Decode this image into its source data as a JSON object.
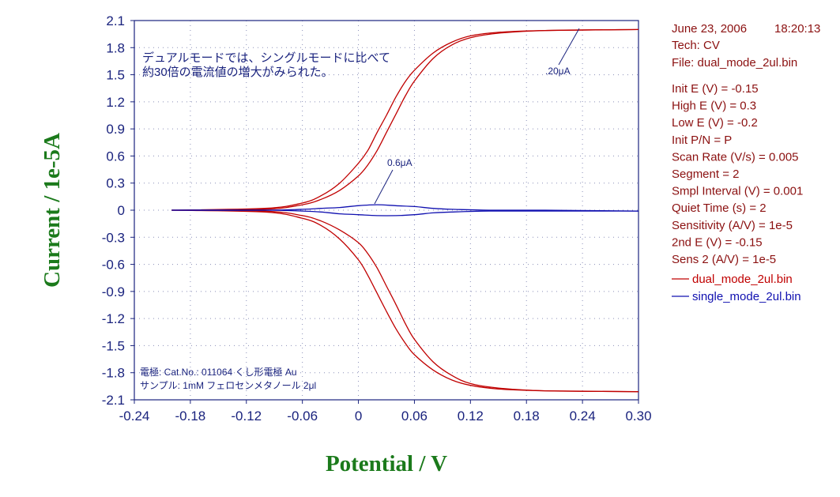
{
  "chart_data": {
    "type": "line",
    "xlabel": "Potential / V",
    "ylabel": "Current / 1e-5A",
    "xlim": [
      -0.24,
      0.3
    ],
    "ylim": [
      -2.1,
      2.1
    ],
    "grid": true,
    "x_ticks": [
      "-0.24",
      "-0.18",
      "-0.12",
      "-0.06",
      "0",
      "0.06",
      "0.12",
      "0.18",
      "0.24",
      "0.30"
    ],
    "y_ticks": [
      "2.1",
      "1.8",
      "1.5",
      "1.2",
      "0.9",
      "0.6",
      "0.3",
      "0",
      "-0.3",
      "-0.6",
      "-0.9",
      "-1.2",
      "-1.5",
      "-1.8",
      "-2.1"
    ],
    "series": [
      {
        "name": "dual_mode_2ul.bin",
        "color": "#c00000",
        "forward": [
          [
            -0.2,
            0.0
          ],
          [
            -0.1,
            0.01
          ],
          [
            -0.06,
            0.06
          ],
          [
            -0.04,
            0.12
          ],
          [
            -0.02,
            0.22
          ],
          [
            0.0,
            0.38
          ],
          [
            0.01,
            0.5
          ],
          [
            0.02,
            0.66
          ],
          [
            0.03,
            0.86
          ],
          [
            0.04,
            1.06
          ],
          [
            0.05,
            1.26
          ],
          [
            0.06,
            1.43
          ],
          [
            0.08,
            1.68
          ],
          [
            0.1,
            1.83
          ],
          [
            0.12,
            1.91
          ],
          [
            0.15,
            1.96
          ],
          [
            0.2,
            1.99
          ],
          [
            0.3,
            2.0
          ]
        ],
        "reverse": [
          [
            0.3,
            2.0
          ],
          [
            0.2,
            1.99
          ],
          [
            0.15,
            1.97
          ],
          [
            0.12,
            1.93
          ],
          [
            0.1,
            1.86
          ],
          [
            0.08,
            1.74
          ],
          [
            0.06,
            1.55
          ],
          [
            0.05,
            1.42
          ],
          [
            0.04,
            1.25
          ],
          [
            0.03,
            1.05
          ],
          [
            0.02,
            0.86
          ],
          [
            0.01,
            0.66
          ],
          [
            0.0,
            0.52
          ],
          [
            -0.02,
            0.3
          ],
          [
            -0.04,
            0.16
          ],
          [
            -0.06,
            0.08
          ],
          [
            -0.1,
            0.02
          ],
          [
            -0.2,
            0.0
          ]
        ],
        "collector_forward": [
          [
            -0.2,
            0.0
          ],
          [
            -0.1,
            -0.01
          ],
          [
            -0.06,
            -0.06
          ],
          [
            -0.04,
            -0.12
          ],
          [
            -0.02,
            -0.22
          ],
          [
            0.0,
            -0.36
          ],
          [
            0.01,
            -0.48
          ],
          [
            0.02,
            -0.64
          ],
          [
            0.03,
            -0.84
          ],
          [
            0.04,
            -1.04
          ],
          [
            0.05,
            -1.25
          ],
          [
            0.06,
            -1.43
          ],
          [
            0.08,
            -1.68
          ],
          [
            0.1,
            -1.83
          ],
          [
            0.12,
            -1.92
          ],
          [
            0.15,
            -1.97
          ],
          [
            0.2,
            -2.0
          ],
          [
            0.3,
            -2.01
          ]
        ],
        "collector_reverse": [
          [
            0.3,
            -2.01
          ],
          [
            0.2,
            -2.0
          ],
          [
            0.15,
            -1.98
          ],
          [
            0.12,
            -1.94
          ],
          [
            0.1,
            -1.88
          ],
          [
            0.08,
            -1.77
          ],
          [
            0.06,
            -1.6
          ],
          [
            0.05,
            -1.47
          ],
          [
            0.04,
            -1.31
          ],
          [
            0.03,
            -1.12
          ],
          [
            0.02,
            -0.92
          ],
          [
            0.01,
            -0.72
          ],
          [
            0.0,
            -0.55
          ],
          [
            -0.02,
            -0.32
          ],
          [
            -0.04,
            -0.17
          ],
          [
            -0.06,
            -0.09
          ],
          [
            -0.1,
            -0.02
          ],
          [
            -0.2,
            0.0
          ]
        ]
      },
      {
        "name": "single_mode_2ul.bin",
        "color": "#1010b0",
        "forward": [
          [
            -0.2,
            0.0
          ],
          [
            -0.1,
            0.0
          ],
          [
            -0.06,
            0.01
          ],
          [
            -0.04,
            0.02
          ],
          [
            -0.02,
            0.03
          ],
          [
            0.0,
            0.05
          ],
          [
            0.02,
            0.06
          ],
          [
            0.04,
            0.05
          ],
          [
            0.06,
            0.04
          ],
          [
            0.08,
            0.02
          ],
          [
            0.1,
            0.01
          ],
          [
            0.14,
            0.0
          ],
          [
            0.2,
            0.0
          ],
          [
            0.3,
            -0.01
          ]
        ],
        "reverse": [
          [
            0.3,
            -0.01
          ],
          [
            0.2,
            -0.01
          ],
          [
            0.14,
            -0.01
          ],
          [
            0.1,
            -0.02
          ],
          [
            0.08,
            -0.03
          ],
          [
            0.06,
            -0.05
          ],
          [
            0.04,
            -0.06
          ],
          [
            0.02,
            -0.06
          ],
          [
            0.0,
            -0.05
          ],
          [
            -0.02,
            -0.04
          ],
          [
            -0.04,
            -0.02
          ],
          [
            -0.06,
            -0.01
          ],
          [
            -0.1,
            0.0
          ],
          [
            -0.2,
            0.0
          ]
        ]
      }
    ],
    "annotations": {
      "jp_line1": "デュアルモードでは、シングルモードに比べて",
      "jp_line2": "約30倍の電流値の増大がみられた。",
      "label_20uA": ".20μA",
      "label_06uA": "0.6μA",
      "electrode": "電極: Cat.No.: 011064 くし形電極 Au",
      "sample": "サンプル: 1mM フェロセンメタノール 2μl"
    }
  },
  "info_panel": {
    "date": "June 23, 2006",
    "time": "18:20:13",
    "tech": "Tech: CV",
    "file": "File: dual_mode_2ul.bin",
    "params": [
      "Init E (V) = -0.15",
      "High E (V) = 0.3",
      "Low E (V) = -0.2",
      "Init P/N = P",
      "Scan Rate (V/s) = 0.005",
      "Segment = 2",
      "Smpl Interval (V) = 0.001",
      "Quiet Time (s) = 2",
      "Sensitivity (A/V) = 1e-5",
      "2nd E (V) = -0.15",
      "Sens 2 (A/V) = 1e-5"
    ]
  },
  "legend": {
    "items": [
      {
        "label": "dual_mode_2ul.bin",
        "color": "#c00000"
      },
      {
        "label": "single_mode_2ul.bin",
        "color": "#1010b0"
      }
    ]
  }
}
